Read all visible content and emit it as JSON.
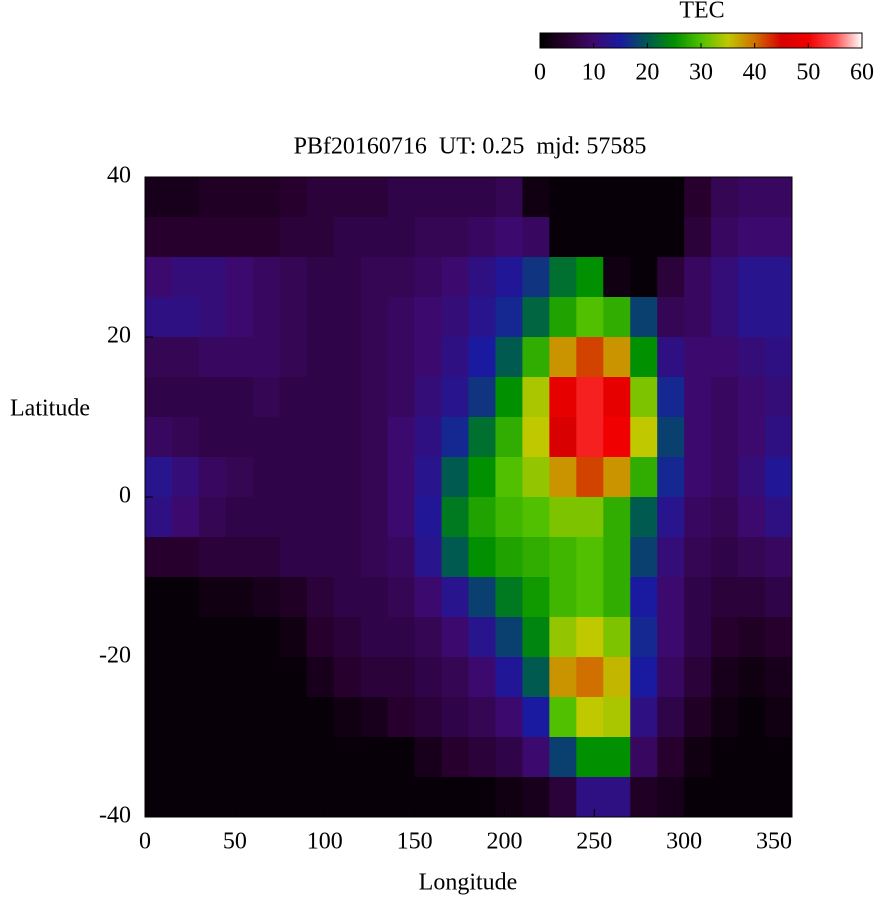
{
  "chart_data": {
    "type": "heatmap",
    "title": "PBf20160716  UT: 0.25  mjd: 57585",
    "x_label": "Longitude",
    "y_label": "Latitude",
    "colorbar_label": "TEC",
    "xlim": [
      0,
      360
    ],
    "ylim": [
      -40,
      40
    ],
    "clim": [
      0,
      60
    ],
    "xticks": [
      0,
      50,
      100,
      150,
      200,
      250,
      300,
      350
    ],
    "yticks": [
      -40,
      -20,
      0,
      20,
      40
    ],
    "cticks": [
      0,
      10,
      20,
      30,
      40,
      50,
      60
    ],
    "colormap": [
      "#000000",
      "#28002e",
      "#3c0a6e",
      "#1a1aa0",
      "#005a50",
      "#009000",
      "#50c000",
      "#c0c800",
      "#d07000",
      "#d80000",
      "#f00000",
      "#ff5050",
      "#ffffff"
    ],
    "x": [
      7.5,
      22.5,
      37.5,
      52.5,
      67.5,
      82.5,
      97.5,
      112.5,
      127.5,
      142.5,
      157.5,
      172.5,
      187.5,
      202.5,
      217.5,
      232.5,
      247.5,
      262.5,
      277.5,
      292.5,
      307.5,
      322.5,
      337.5,
      352.5
    ],
    "y": [
      37.5,
      32.5,
      27.5,
      22.5,
      17.5,
      12.5,
      7.5,
      2.5,
      -2.5,
      -7.5,
      -12.5,
      -17.5,
      -22.5,
      -27.5,
      -32.5,
      -37.5
    ],
    "z": [
      [
        3,
        3,
        4,
        4,
        4,
        5,
        6,
        6,
        6,
        7,
        7,
        7,
        7,
        8,
        2,
        1,
        1,
        1,
        1,
        1,
        5,
        8,
        9,
        9
      ],
      [
        5,
        5,
        5,
        5,
        5,
        6,
        6,
        7,
        7,
        7,
        8,
        8,
        9,
        10,
        9,
        1,
        1,
        1,
        1,
        1,
        6,
        9,
        10,
        10
      ],
      [
        10,
        11,
        11,
        10,
        9,
        8,
        7,
        7,
        8,
        8,
        9,
        10,
        12,
        14,
        17,
        22,
        25,
        2,
        1,
        6,
        9,
        11,
        13,
        13
      ],
      [
        12,
        12,
        11,
        10,
        9,
        8,
        7,
        7,
        8,
        9,
        10,
        11,
        13,
        16,
        21,
        27,
        30,
        28,
        18,
        8,
        9,
        11,
        13,
        13
      ],
      [
        8,
        8,
        9,
        9,
        9,
        8,
        7,
        7,
        8,
        9,
        10,
        12,
        15,
        20,
        28,
        38,
        42,
        38,
        25,
        12,
        10,
        10,
        11,
        12
      ],
      [
        7,
        7,
        7,
        7,
        8,
        7,
        7,
        7,
        8,
        9,
        11,
        13,
        17,
        25,
        34,
        48,
        52,
        48,
        32,
        16,
        10,
        9,
        10,
        11
      ],
      [
        9,
        8,
        7,
        7,
        7,
        7,
        7,
        7,
        8,
        10,
        12,
        16,
        22,
        28,
        35,
        45,
        52,
        50,
        35,
        18,
        10,
        9,
        10,
        12
      ],
      [
        13,
        11,
        9,
        8,
        7,
        7,
        7,
        7,
        8,
        10,
        13,
        20,
        25,
        30,
        33,
        38,
        42,
        38,
        28,
        16,
        10,
        9,
        11,
        14
      ],
      [
        12,
        10,
        8,
        7,
        7,
        7,
        7,
        7,
        8,
        10,
        14,
        23,
        27,
        29,
        30,
        32,
        32,
        28,
        20,
        13,
        9,
        8,
        10,
        12
      ],
      [
        5,
        5,
        6,
        6,
        6,
        7,
        7,
        7,
        8,
        9,
        13,
        20,
        25,
        27,
        28,
        29,
        30,
        28,
        18,
        11,
        8,
        7,
        8,
        9
      ],
      [
        1,
        1,
        2,
        2,
        3,
        4,
        6,
        7,
        7,
        8,
        10,
        13,
        18,
        23,
        26,
        29,
        30,
        28,
        15,
        10,
        7,
        6,
        6,
        7
      ],
      [
        1,
        1,
        1,
        1,
        1,
        2,
        5,
        6,
        7,
        7,
        8,
        10,
        13,
        18,
        24,
        33,
        35,
        32,
        16,
        10,
        7,
        5,
        4,
        5
      ],
      [
        1,
        1,
        1,
        1,
        1,
        1,
        3,
        5,
        6,
        6,
        7,
        8,
        10,
        14,
        20,
        38,
        40,
        36,
        15,
        9,
        6,
        3,
        2,
        3
      ],
      [
        1,
        1,
        1,
        1,
        1,
        1,
        1,
        2,
        3,
        5,
        6,
        7,
        8,
        10,
        15,
        30,
        35,
        34,
        12,
        7,
        4,
        2,
        1,
        2
      ],
      [
        1,
        1,
        1,
        1,
        1,
        1,
        1,
        1,
        1,
        1,
        3,
        5,
        6,
        7,
        10,
        18,
        25,
        25,
        9,
        5,
        2,
        1,
        1,
        1
      ],
      [
        1,
        1,
        1,
        1,
        1,
        1,
        1,
        1,
        1,
        1,
        1,
        1,
        1,
        2,
        3,
        6,
        12,
        12,
        4,
        3,
        1,
        1,
        1,
        1
      ]
    ]
  }
}
